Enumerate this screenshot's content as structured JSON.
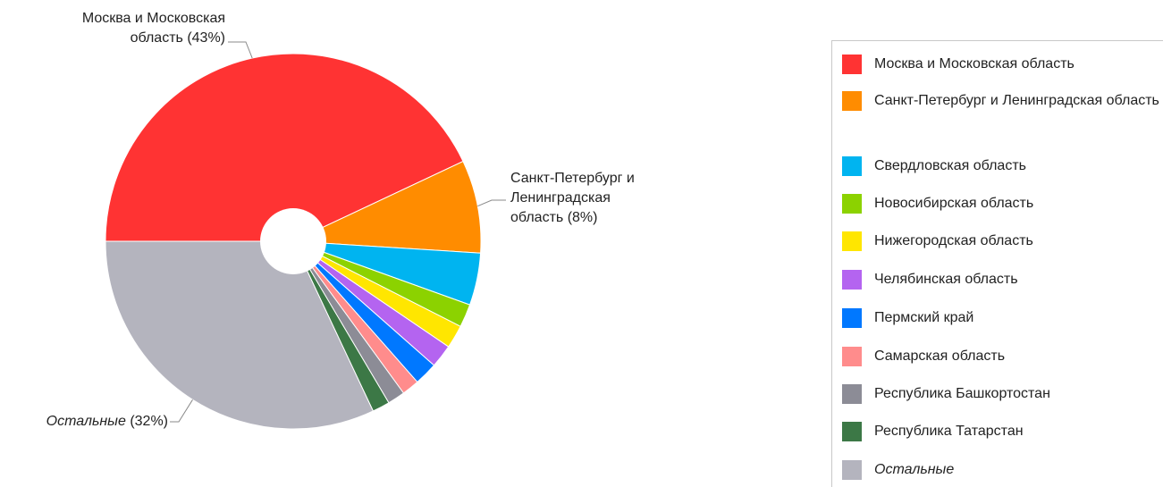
{
  "chart_data": {
    "type": "pie",
    "donut": true,
    "slices": [
      {
        "label": "Москва и Московская область",
        "value": 43,
        "color": "#ff3333",
        "callout": "Москва и Московская область (43%)"
      },
      {
        "label": "Санкт-Петербург и Ленинградская область",
        "value": 8,
        "color": "#ff8c00",
        "callout": "Санкт-Петербург и Ленинградская область (8%)"
      },
      {
        "label": "Свердловская область",
        "value": 4.5,
        "color": "#00b4f0"
      },
      {
        "label": "Новосибирская область",
        "value": 2,
        "color": "#8cd200"
      },
      {
        "label": "Нижегородская область",
        "value": 2,
        "color": "#ffe600"
      },
      {
        "label": "Челябинская область",
        "value": 2,
        "color": "#b464f0"
      },
      {
        "label": "Пермский край",
        "value": 2,
        "color": "#0078ff"
      },
      {
        "label": "Самарская область",
        "value": 1.5,
        "color": "#ff8c8c"
      },
      {
        "label": "Республика Башкортостан",
        "value": 1.5,
        "color": "#8c8c96"
      },
      {
        "label": "Республика Татарстан",
        "value": 1.5,
        "color": "#3c7846"
      },
      {
        "label": "Остальные",
        "value": 32,
        "color": "#b4b4be",
        "italic": true,
        "callout": "Остальные",
        "callout_pct": "(32%)"
      }
    ],
    "legend": {
      "placement": "right",
      "items": [
        "Москва и Московская область",
        "Санкт-Петербург и Ленинградская область",
        "Свердловская область",
        "Новосибирская область",
        "Нижегородская область",
        "Челябинская область",
        "Пермский край",
        "Самарская область",
        "Республика Башкортостан",
        "Республика Татарстан",
        "Остальные"
      ]
    }
  },
  "callouts": {
    "moscow_line1": "Москва и Московская",
    "moscow_line2": "область (43%)",
    "spb_line1": "Санкт-Петербург и",
    "spb_line2": "Ленинградская",
    "spb_line3": "область (8%)",
    "other_name": "Остальные",
    "other_pct": "(32%)"
  }
}
